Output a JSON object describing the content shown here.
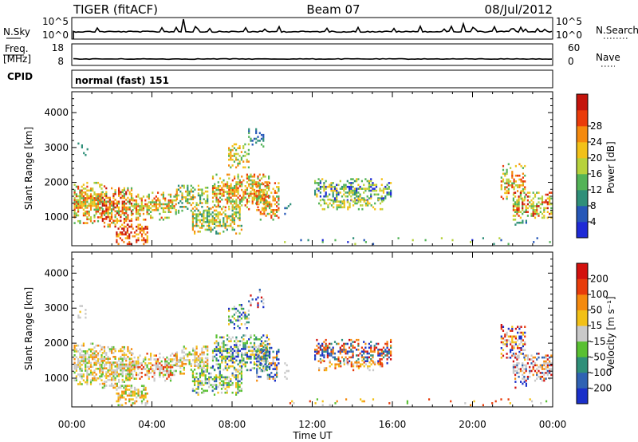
{
  "header": {
    "radar": "TIGER (fitACF)",
    "beam": "Beam 07",
    "date": "08/Jul/2012"
  },
  "strips": {
    "nsky": {
      "label": "N.Sky",
      "ticks": [
        "10^5",
        "10^0"
      ]
    },
    "nsearch": {
      "label": "N.Search",
      "ticks": [
        "10^5",
        "10^0"
      ]
    },
    "freq": {
      "label_line1": "Freq.",
      "label_line2": "[MHz]",
      "ticks": [
        "18",
        "8"
      ]
    },
    "nave": {
      "label": "Nave",
      "ticks": [
        "60",
        "0"
      ]
    },
    "cpid": {
      "label": "CPID",
      "value": "normal (fast) 151"
    }
  },
  "chart_data": [
    {
      "type": "heatmap",
      "ylabel": "Slant Range [km]",
      "xlabel": "Time UT",
      "xlim_hours": [
        0,
        24
      ],
      "ylim_km": [
        180,
        4600
      ],
      "x_ticks": [
        "00:00",
        "04:00",
        "08:00",
        "12:00",
        "16:00",
        "20:00",
        "00:00"
      ],
      "y_ticks": [
        "1000",
        "2000",
        "3000",
        "4000"
      ],
      "colorbar": {
        "label": "Power [dB]",
        "ticks": [
          "4",
          "8",
          "12",
          "16",
          "20",
          "24",
          "28"
        ],
        "colors": [
          "#1e2ad6",
          "#2657b8",
          "#2f8f79",
          "#53b357",
          "#b7d23c",
          "#f2c119",
          "#f58a0e",
          "#ea3b0a",
          "#c4140c"
        ]
      }
    },
    {
      "type": "heatmap",
      "ylabel": "Slant Range [km]",
      "xlabel": "Time UT",
      "xlim_hours": [
        0,
        24
      ],
      "ylim_km": [
        180,
        4600
      ],
      "x_ticks": [
        "00:00",
        "04:00",
        "08:00",
        "12:00",
        "16:00",
        "20:00",
        "00:00"
      ],
      "y_ticks": [
        "1000",
        "2000",
        "3000",
        "4000"
      ],
      "colorbar": {
        "label": "Velocity [m s⁻¹]",
        "ticks": [
          "200",
          "100",
          "50",
          "15",
          "-15",
          "-50",
          "-100",
          "-200"
        ],
        "colors": [
          "#1a2fc9",
          "#2f62b3",
          "#2f8f79",
          "#59c032",
          "#c9c9c9",
          "#f2c017",
          "#f58a0e",
          "#e83c0b",
          "#d3110e"
        ]
      }
    }
  ]
}
